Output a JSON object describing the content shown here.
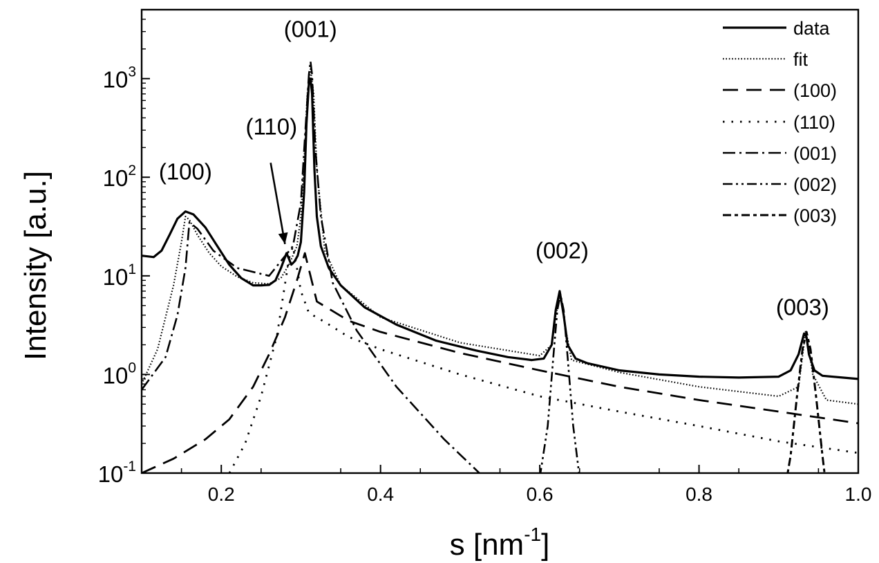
{
  "chart_data": {
    "type": "line",
    "title": "",
    "xlabel": "s [nm",
    "xlabel_sup": "-1",
    "xlabel_close": "]",
    "ylabel": "Intensity [a.u.]",
    "xlim": [
      0.1,
      1.0
    ],
    "ylim": [
      0.1,
      5000
    ],
    "yscale": "log",
    "grid": false,
    "legend_position": "top-right",
    "x_ticks": [
      {
        "value": 0.2,
        "label": "0.2"
      },
      {
        "value": 0.4,
        "label": "0.4"
      },
      {
        "value": 0.6,
        "label": "0.6"
      },
      {
        "value": 0.8,
        "label": "0.8"
      },
      {
        "value": 1.0,
        "label": "1.0"
      }
    ],
    "y_ticks": [
      {
        "value": 0.1,
        "base": "10",
        "exp": "-1"
      },
      {
        "value": 1,
        "base": "10",
        "exp": "0"
      },
      {
        "value": 10,
        "base": "10",
        "exp": "1"
      },
      {
        "value": 100,
        "base": "10",
        "exp": "2"
      },
      {
        "value": 1000,
        "base": "10",
        "exp": "3"
      }
    ],
    "annotations": [
      {
        "text": "(100)",
        "x": 0.155,
        "y": 95
      },
      {
        "text": "(110)",
        "x": 0.263,
        "y": 270
      },
      {
        "text": "(001)",
        "x": 0.312,
        "y": 2650
      },
      {
        "text": "(002)",
        "x": 0.628,
        "y": 15
      },
      {
        "text": "(003)",
        "x": 0.93,
        "y": 4.0
      }
    ],
    "arrow": {
      "from": [
        0.262,
        140
      ],
      "to": [
        0.28,
        21
      ]
    },
    "series": [
      {
        "name": "data",
        "dash": "",
        "width": 3.2,
        "x": [
          0.1,
          0.115,
          0.125,
          0.135,
          0.145,
          0.155,
          0.165,
          0.18,
          0.195,
          0.21,
          0.225,
          0.24,
          0.25,
          0.26,
          0.268,
          0.275,
          0.282,
          0.288,
          0.292,
          0.296,
          0.3,
          0.304,
          0.307,
          0.31,
          0.312,
          0.314,
          0.317,
          0.32,
          0.325,
          0.335,
          0.35,
          0.38,
          0.42,
          0.47,
          0.52,
          0.56,
          0.59,
          0.605,
          0.615,
          0.62,
          0.625,
          0.63,
          0.635,
          0.645,
          0.66,
          0.7,
          0.75,
          0.8,
          0.85,
          0.9,
          0.915,
          0.925,
          0.932,
          0.935,
          0.938,
          0.945,
          0.955,
          0.98,
          1.0
        ],
        "y": [
          16,
          15.5,
          18,
          26,
          38,
          45,
          42,
          31,
          20,
          13,
          9.5,
          8,
          8,
          8.1,
          9,
          12,
          17,
          13,
          14,
          16,
          22,
          70,
          350,
          900,
          1000,
          700,
          120,
          40,
          20,
          12,
          8,
          4.8,
          3.2,
          2.2,
          1.75,
          1.5,
          1.4,
          1.45,
          2,
          4.5,
          7,
          4,
          2,
          1.45,
          1.3,
          1.1,
          1,
          0.95,
          0.93,
          0.95,
          1.1,
          1.6,
          2.6,
          2.4,
          1.6,
          1.1,
          0.97,
          0.93,
          0.9
        ]
      },
      {
        "name": "fit",
        "dash": "1.6 2.8",
        "width": 2.2,
        "x": [
          0.1,
          0.12,
          0.14,
          0.15,
          0.155,
          0.16,
          0.17,
          0.185,
          0.2,
          0.22,
          0.24,
          0.26,
          0.275,
          0.285,
          0.295,
          0.3,
          0.305,
          0.308,
          0.312,
          0.316,
          0.32,
          0.33,
          0.35,
          0.4,
          0.5,
          0.6,
          0.615,
          0.62,
          0.626,
          0.632,
          0.64,
          0.7,
          0.8,
          0.9,
          0.925,
          0.934,
          0.943,
          0.96,
          1.0
        ],
        "y": [
          0.8,
          1.8,
          8,
          22,
          40,
          37,
          26,
          17,
          12.5,
          9.8,
          8.5,
          8.3,
          9.5,
          13,
          20,
          40,
          200,
          700,
          1250,
          700,
          120,
          18,
          8,
          3.8,
          2.1,
          1.55,
          2,
          4,
          6.5,
          3,
          1.4,
          1.05,
          0.75,
          0.6,
          0.75,
          2.8,
          1,
          0.55,
          0.5
        ]
      },
      {
        "name": "(100)",
        "dash": "22 12",
        "width": 2.8,
        "x": [
          0.1,
          0.14,
          0.18,
          0.21,
          0.24,
          0.26,
          0.28,
          0.295,
          0.305,
          0.32,
          0.36,
          0.4,
          0.5,
          0.6,
          0.7,
          0.8,
          0.9,
          1.0
        ],
        "y": [
          0.1,
          0.14,
          0.22,
          0.35,
          0.75,
          1.6,
          3.8,
          9,
          17,
          5.5,
          3.5,
          2.7,
          1.65,
          1.1,
          0.75,
          0.55,
          0.42,
          0.32
        ]
      },
      {
        "name": "(110)",
        "dash": "2.5 10",
        "width": 2.8,
        "x": [
          0.2,
          0.23,
          0.25,
          0.27,
          0.285,
          0.29,
          0.295,
          0.3,
          0.31,
          0.33,
          0.36,
          0.4,
          0.5,
          0.6,
          0.7,
          0.8,
          0.9,
          1.0
        ],
        "y": [
          0.07,
          0.2,
          0.6,
          2.5,
          15,
          20,
          12,
          7,
          4.2,
          3.4,
          2.4,
          1.8,
          1.0,
          0.6,
          0.42,
          0.3,
          0.21,
          0.16
        ]
      },
      {
        "name": "(001)",
        "dash": "18 6 3 6",
        "width": 2.6,
        "x": [
          0.1,
          0.13,
          0.145,
          0.155,
          0.16,
          0.17,
          0.19,
          0.22,
          0.26,
          0.29,
          0.3,
          0.305,
          0.31,
          0.312,
          0.314,
          0.318,
          0.325,
          0.34,
          0.37,
          0.42,
          0.48,
          0.53
        ],
        "y": [
          0.7,
          1.5,
          4,
          12,
          35,
          30,
          18,
          12,
          10,
          20,
          55,
          250,
          1100,
          1500,
          1100,
          200,
          40,
          8.5,
          2.8,
          0.75,
          0.22,
          0.09
        ]
      },
      {
        "name": "(002)",
        "dash": "14 5 3 5 3 5",
        "width": 2.6,
        "x": [
          0.6,
          0.61,
          0.617,
          0.622,
          0.626,
          0.63,
          0.635,
          0.642,
          0.65
        ],
        "y": [
          0.09,
          0.3,
          1.5,
          4.5,
          6.5,
          4.5,
          1.5,
          0.3,
          0.09
        ]
      },
      {
        "name": "(003)",
        "dash": "12 5 5 5",
        "width": 3.0,
        "x": [
          0.905,
          0.915,
          0.923,
          0.93,
          0.935,
          0.94,
          0.947,
          0.955,
          0.962
        ],
        "y": [
          0.05,
          0.15,
          0.6,
          1.8,
          2.7,
          1.8,
          0.6,
          0.15,
          0.05
        ]
      }
    ]
  }
}
